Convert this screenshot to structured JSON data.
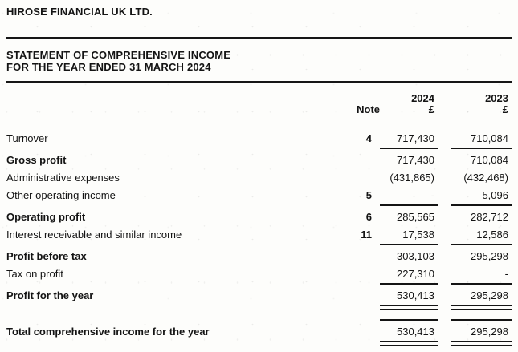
{
  "document": {
    "company": "HIROSE FINANCIAL UK LTD.",
    "statement_title_line1": "STATEMENT OF COMPREHENSIVE INCOME",
    "statement_title_line2": "FOR THE YEAR ENDED 31 MARCH 2024"
  },
  "columns": {
    "note_label": "Note",
    "year1": "2024",
    "year2": "2023",
    "currency1": "£",
    "currency2": "£"
  },
  "rows": [
    {
      "label": "Turnover",
      "bold": false,
      "note": "4",
      "y2024": "717,430",
      "y2023": "710,084",
      "rule_below": "single"
    },
    {
      "label": "Gross profit",
      "bold": true,
      "note": "",
      "y2024": "717,430",
      "y2023": "710,084"
    },
    {
      "label": "Administrative expenses",
      "bold": false,
      "note": "",
      "y2024": "(431,865)",
      "y2023": "(432,468)"
    },
    {
      "label": "Other operating income",
      "bold": false,
      "note": "5",
      "y2024": "-",
      "y2023": "5,096",
      "rule_below": "single"
    },
    {
      "label": "Operating profit",
      "bold": true,
      "note": "6",
      "y2024": "285,565",
      "y2023": "282,712"
    },
    {
      "label": "Interest receivable and similar income",
      "bold": false,
      "note": "11",
      "y2024": "17,538",
      "y2023": "12,586",
      "rule_below": "single"
    },
    {
      "label": "Profit before tax",
      "bold": true,
      "note": "",
      "y2024": "303,103",
      "y2023": "295,298"
    },
    {
      "label": "Tax on profit",
      "bold": false,
      "note": "",
      "y2024": "227,310",
      "y2023": "-",
      "rule_below": "single"
    },
    {
      "label": "Profit for the year",
      "bold": true,
      "note": "",
      "y2024": "530,413",
      "y2023": "295,298",
      "rule_below": "double"
    },
    {
      "label": "Total comprehensive income for the year",
      "bold": true,
      "note": "",
      "y2024": "530,413",
      "y2023": "295,298",
      "spacer_before": true,
      "rule_above": "single",
      "rule_below": "double"
    }
  ],
  "colors": {
    "text": "#141414",
    "rule": "#161616",
    "background": "#fdfdfb"
  }
}
